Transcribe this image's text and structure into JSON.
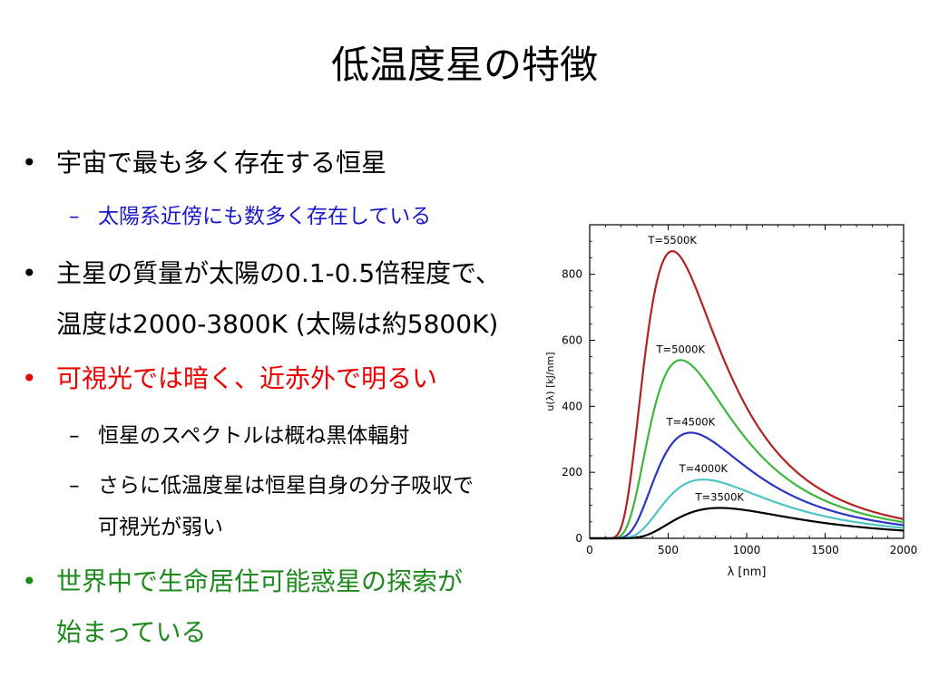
{
  "slide": {
    "title": "低温度星の特徴",
    "bullet_symbol": "•",
    "dash_symbol": "–",
    "b1": "宇宙で最も多く存在する恒星",
    "b1_sub": "太陽系近傍にも数多く存在している",
    "b2_line1": "主星の質量が太陽の0.1-0.5倍程度で、",
    "b2_line2": "温度は2000-3800K (太陽は約5800K)",
    "b3": "可視光では暗く、近赤外で明るい",
    "b3_sub1": "恒星のスペクトルは概ね黒体輻射",
    "b3_sub2_line1": "さらに低温度星は恒星自身の分子吸収で",
    "b3_sub2_line2": "可視光が弱い",
    "b4_line1": "世界中で生命居住可能惑星の探索が",
    "b4_line2": "始まっている",
    "colors": {
      "sub_blue": "#1a1acc",
      "emph_red": "#ee0000",
      "emph_green": "#1e8a1e"
    }
  },
  "chart_data": {
    "type": "line",
    "xlabel": "λ [nm]",
    "ylabel": "u(λ) [kJ/nm]",
    "xlim": [
      0,
      2000
    ],
    "ylim": [
      0,
      950
    ],
    "xticks": [
      0,
      500,
      1000,
      1500,
      2000
    ],
    "yticks": [
      0,
      200,
      400,
      600,
      800
    ],
    "grid": false,
    "series": [
      {
        "name": "T=5500K",
        "T": 5500,
        "color": "#b22222",
        "peak_value": 870
      },
      {
        "name": "T=5000K",
        "T": 5000,
        "color": "#3cb83c",
        "peak_value": 540
      },
      {
        "name": "T=4500K",
        "T": 4500,
        "color": "#2a36c2",
        "peak_value": 320
      },
      {
        "name": "T=4000K",
        "T": 4000,
        "color": "#4fc4c4",
        "peak_value": 178
      },
      {
        "name": "T=3500K",
        "T": 3500,
        "color": "#000000",
        "peak_value": 92
      }
    ]
  }
}
